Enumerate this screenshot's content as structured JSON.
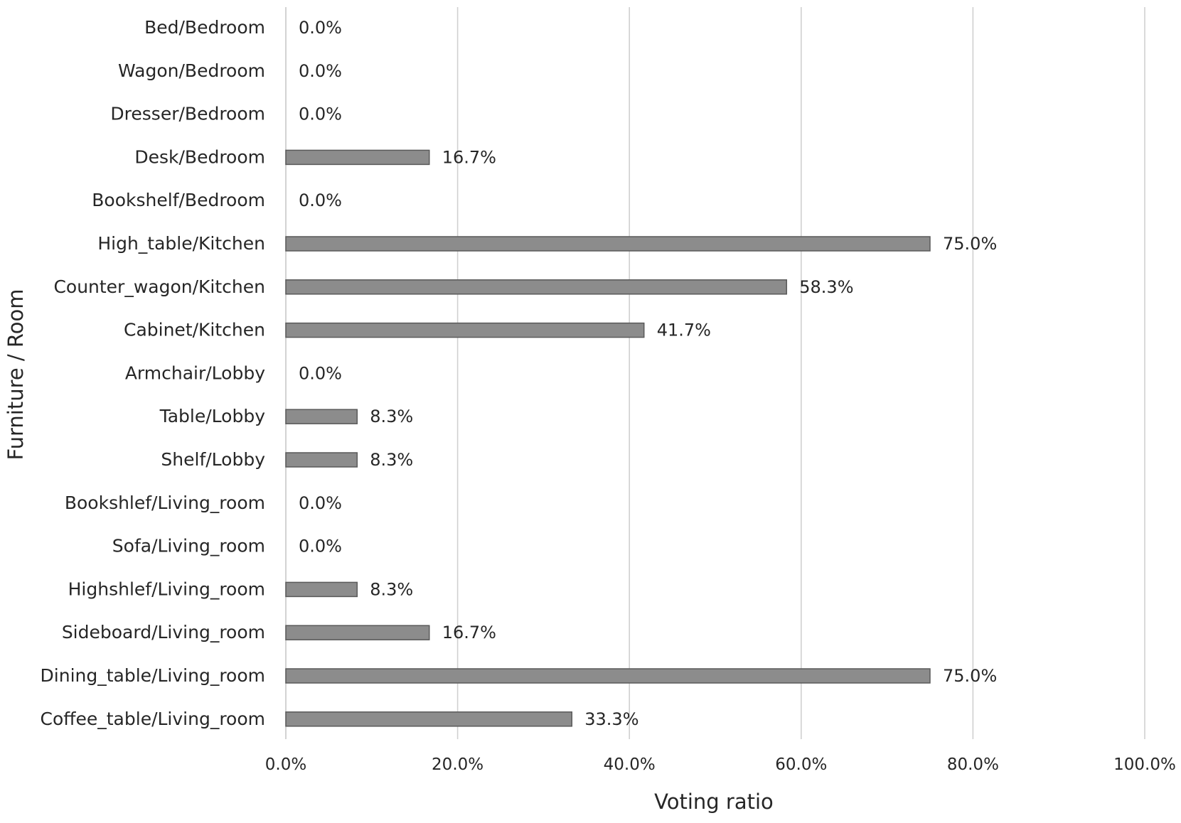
{
  "chart_data": {
    "type": "bar",
    "orientation": "horizontal",
    "title": "",
    "xlabel": "Voting ratio",
    "ylabel": "Furniture / Room",
    "xlim": [
      0,
      100
    ],
    "x_ticks": [
      "0.0%",
      "20.0%",
      "40.0%",
      "60.0%",
      "80.0%",
      "100.0%"
    ],
    "grid": "vertical gridlines",
    "legend": "none",
    "bar_color": "#8c8c8c",
    "bar_border_color": "#5a5a5a",
    "categories": [
      "Bed/Bedroom",
      "Wagon/Bedroom",
      "Dresser/Bedroom",
      "Desk/Bedroom",
      "Bookshelf/Bedroom",
      "High_table/Kitchen",
      "Counter_wagon/Kitchen",
      "Cabinet/Kitchen",
      "Armchair/Lobby",
      "Table/Lobby",
      "Shelf/Lobby",
      "Bookshlef/Living_room",
      "Sofa/Living_room",
      "Highshlef/Living_room",
      "Sideboard/Living_room",
      "Dining_table/Living_room",
      "Coffee_table/Living_room"
    ],
    "values": [
      0.0,
      0.0,
      0.0,
      16.7,
      0.0,
      75.0,
      58.3,
      41.7,
      0.0,
      8.3,
      8.3,
      0.0,
      0.0,
      8.3,
      16.7,
      75.0,
      33.3
    ],
    "data_labels": [
      "0.0%",
      "0.0%",
      "0.0%",
      "16.7%",
      "0.0%",
      "75.0%",
      "58.3%",
      "41.7%",
      "0.0%",
      "8.3%",
      "8.3%",
      "0.0%",
      "0.0%",
      "8.3%",
      "16.7%",
      "75.0%",
      "33.3%"
    ]
  }
}
